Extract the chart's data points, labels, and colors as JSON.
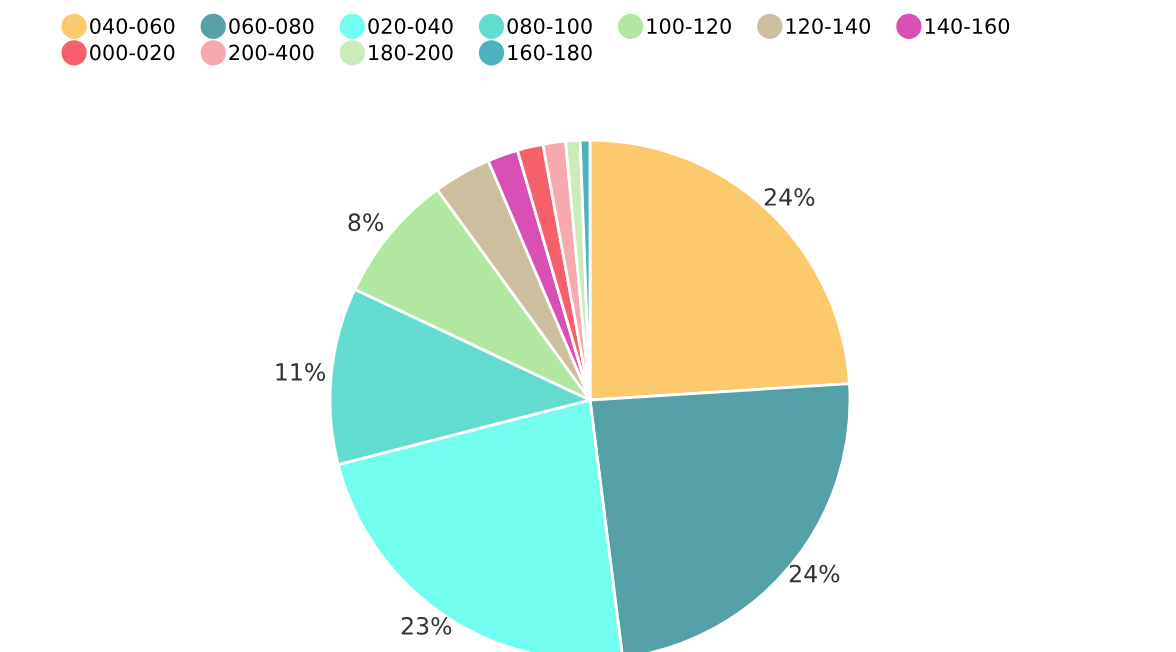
{
  "chart_data": {
    "type": "pie",
    "categories": [
      "040-060",
      "060-080",
      "020-040",
      "080-100",
      "100-120",
      "120-140",
      "140-160",
      "000-020",
      "200-400",
      "180-200",
      "160-180"
    ],
    "values": [
      24,
      24,
      23,
      11,
      8,
      3.6,
      1.9,
      1.6,
      1.4,
      0.9,
      0.6
    ],
    "value_labels": [
      "24%",
      "24%",
      "23%",
      "11%",
      "8%",
      null,
      null,
      null,
      null,
      null,
      null
    ],
    "colors": [
      "#fcc96c",
      "#56a0aa",
      "#71fdef",
      "#62dcd0",
      "#b0e8a0",
      "#cdbf9e",
      "#d94fb5",
      "#f5606a",
      "#f7a9ae",
      "#c9ecba",
      "#4bb3c0"
    ],
    "legend": "top"
  }
}
